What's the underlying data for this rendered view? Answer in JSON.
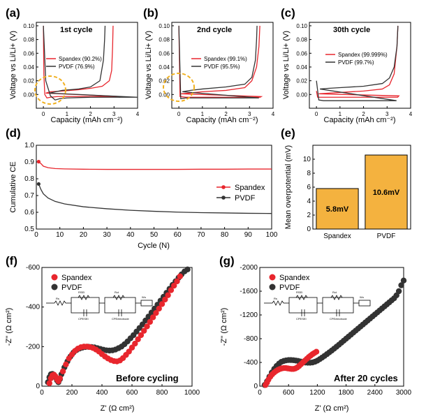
{
  "panels": {
    "a": {
      "label": "(a)",
      "title": "1st cycle",
      "ylabel": "Voltage vs Li/Li+ (V)",
      "xlabel": "Capacity (mAh cm⁻²)",
      "legend": [
        "Spandex (90.2%)",
        "PVDF (76.9%)"
      ]
    },
    "b": {
      "label": "(b)",
      "title": "2nd cycle",
      "ylabel": "Voltage vs Li/Li+ (V)",
      "xlabel": "Capacity (mAh cm⁻²)",
      "legend": [
        "Spandex (99.1%)",
        "PVDF (95.5%)"
      ]
    },
    "c": {
      "label": "(c)",
      "title": "30th cycle",
      "ylabel": "Voltage vs Li/Li+ (V)",
      "xlabel": "Capacity (mAh cm⁻²)",
      "legend": [
        "Spandex (99.999%)",
        "PVDF (99.7%)"
      ]
    },
    "d": {
      "label": "(d)",
      "ylabel": "Cumulative CE",
      "xlabel": "Cycle (N)",
      "legend": [
        "Spandex",
        "PVDF"
      ]
    },
    "e": {
      "label": "(e)",
      "ylabel": "Mean overpotential (mV)",
      "bar_labels": [
        "5.8mV",
        "10.6mV"
      ]
    },
    "f": {
      "label": "(f)",
      "ylabel": "-Z'' (Ω cm²)",
      "xlabel": "Z' (Ω cm²)",
      "legend": [
        "Spandex",
        "PVDF"
      ],
      "annotation": "Before cycling",
      "circuit": [
        "Rs",
        "RSEI",
        "CPESEI",
        "Rct",
        "CPEelectrode",
        "Wo"
      ]
    },
    "g": {
      "label": "(g)",
      "ylabel": "-Z'' (Ω cm²)",
      "xlabel": "Z' (Ω cm²)",
      "legend": [
        "Spandex",
        "PVDF"
      ],
      "annotation": "After 20 cycles",
      "circuit": [
        "Rs",
        "RSEI",
        "CPESEI",
        "Rct",
        "CPEelectrode",
        "Wo"
      ]
    }
  },
  "colors": {
    "spandex": "#e8262d",
    "pvdf": "#333333",
    "bar": "#f4b23f",
    "highlight": "#f0b020"
  },
  "chart_data": [
    {
      "id": "a",
      "type": "line",
      "title": "1st cycle",
      "xlabel": "Capacity (mAh cm-2)",
      "ylabel": "Voltage vs Li/Li+ (V)",
      "xlim": [
        -0.3,
        4
      ],
      "ylim": [
        -0.02,
        0.105
      ],
      "xticks": [
        0,
        1,
        2,
        3,
        4
      ],
      "yticks": [
        0.0,
        0.02,
        0.04,
        0.06,
        0.08,
        0.1
      ],
      "series": [
        {
          "name": "Spandex (90.2%)",
          "x": [
            0,
            0.02,
            0.06,
            0.15,
            0.3,
            0.6,
            1.0,
            2.0,
            3.0,
            3.25,
            3.28,
            0.1,
            0.3,
            0.8,
            1.5,
            2.0,
            2.5,
            2.8,
            2.9,
            2.94,
            2.96
          ],
          "y": [
            0.1,
            0.03,
            0.0,
            -0.005,
            -0.004,
            -0.003,
            -0.003,
            -0.003,
            -0.003,
            -0.004,
            -0.003,
            0.002,
            0.004,
            0.005,
            0.007,
            0.009,
            0.012,
            0.02,
            0.035,
            0.07,
            0.1
          ]
        },
        {
          "name": "PVDF (76.9%)",
          "x": [
            0,
            0.1,
            0.3,
            0.5,
            0.7,
            1.0,
            2.0,
            3.0,
            4.0,
            0.25,
            0.8,
            1.5,
            2.0,
            2.4,
            2.55,
            2.6,
            2.62
          ],
          "y": [
            0.1,
            0.02,
            -0.002,
            -0.008,
            -0.006,
            -0.005,
            -0.004,
            -0.004,
            -0.004,
            0.002,
            0.006,
            0.008,
            0.011,
            0.02,
            0.05,
            0.08,
            0.1
          ]
        }
      ]
    },
    {
      "id": "b",
      "type": "line",
      "title": "2nd cycle",
      "xlabel": "Capacity (mAh cm-2)",
      "ylabel": "Voltage vs Li/Li+ (V)",
      "xlim": [
        -0.3,
        4
      ],
      "ylim": [
        -0.02,
        0.105
      ],
      "xticks": [
        0,
        1,
        2,
        3,
        4
      ],
      "yticks": [
        0.0,
        0.02,
        0.04,
        0.06,
        0.08,
        0.1
      ],
      "series": [
        {
          "name": "Spandex (99.1%)",
          "x": [
            0,
            0.05,
            0.3,
            1.0,
            2.0,
            3.0,
            3.45,
            3.5,
            0.1,
            1.0,
            2.0,
            2.8,
            3.1,
            3.3,
            3.4,
            3.44
          ],
          "y": [
            0.1,
            -0.003,
            -0.004,
            -0.004,
            -0.004,
            -0.004,
            -0.004,
            -0.003,
            0.001,
            0.004,
            0.006,
            0.01,
            0.02,
            0.04,
            0.07,
            0.1
          ]
        },
        {
          "name": "PVDF (95.5%)",
          "x": [
            0,
            0.08,
            0.3,
            1.0,
            2.0,
            3.0,
            3.4,
            0.15,
            0.5,
            1.0,
            2.0,
            2.8,
            3.1,
            3.25,
            3.3,
            3.32
          ],
          "y": [
            0.1,
            -0.006,
            -0.005,
            -0.005,
            -0.005,
            -0.005,
            -0.005,
            0.004,
            0.006,
            0.008,
            0.011,
            0.015,
            0.025,
            0.05,
            0.08,
            0.1
          ]
        }
      ]
    },
    {
      "id": "c",
      "type": "line",
      "title": "30th cycle",
      "xlabel": "Capacity (mAh cm-2)",
      "ylabel": "Voltage vs Li/Li+ (V)",
      "xlim": [
        -0.3,
        4
      ],
      "ylim": [
        -0.02,
        0.105
      ],
      "xticks": [
        0,
        1,
        2,
        3,
        4
      ],
      "yticks": [
        0.0,
        0.02,
        0.04,
        0.06,
        0.08,
        0.1
      ],
      "series": [
        {
          "name": "Spandex (99.999%)",
          "x": [
            0,
            0.05,
            0.3,
            1.0,
            2.0,
            3.0,
            3.45,
            3.5,
            0.1,
            1.0,
            2.0,
            2.8,
            3.1,
            3.3,
            3.42,
            3.46
          ],
          "y": [
            0.005,
            -0.004,
            -0.004,
            -0.004,
            -0.004,
            -0.004,
            -0.004,
            -0.002,
            0.001,
            0.003,
            0.005,
            0.008,
            0.014,
            0.03,
            0.07,
            0.1
          ]
        },
        {
          "name": "PVDF (99.7%)",
          "x": [
            0,
            0.1,
            0.3,
            1.0,
            2.0,
            3.0,
            3.4,
            0.15,
            0.5,
            1.0,
            2.0,
            2.8,
            3.1,
            3.3,
            3.42,
            3.46
          ],
          "y": [
            0.02,
            -0.008,
            -0.009,
            -0.009,
            -0.009,
            -0.009,
            -0.009,
            0.008,
            0.009,
            0.01,
            0.012,
            0.016,
            0.024,
            0.04,
            0.07,
            0.1
          ]
        }
      ]
    },
    {
      "id": "d",
      "type": "line",
      "xlabel": "Cycle (N)",
      "ylabel": "Cumulative CE",
      "xlim": [
        0,
        100
      ],
      "ylim": [
        0.5,
        1.0
      ],
      "xticks": [
        0,
        10,
        20,
        30,
        40,
        50,
        60,
        70,
        80,
        90,
        100
      ],
      "yticks": [
        0.5,
        0.6,
        0.7,
        0.8,
        0.9,
        1.0
      ],
      "series": [
        {
          "name": "Spandex",
          "x": [
            1,
            2,
            3,
            5,
            8,
            12,
            20,
            30,
            40,
            50,
            60,
            70,
            80,
            90,
            100
          ],
          "y": [
            0.902,
            0.89,
            0.875,
            0.866,
            0.861,
            0.859,
            0.857,
            0.856,
            0.856,
            0.856,
            0.856,
            0.857,
            0.857,
            0.858,
            0.858
          ]
        },
        {
          "name": "PVDF",
          "x": [
            1,
            2,
            3,
            5,
            8,
            12,
            20,
            30,
            40,
            50,
            60,
            70,
            80,
            90,
            100
          ],
          "y": [
            0.769,
            0.735,
            0.71,
            0.685,
            0.665,
            0.65,
            0.633,
            0.621,
            0.612,
            0.606,
            0.601,
            0.598,
            0.596,
            0.594,
            0.593
          ]
        }
      ]
    },
    {
      "id": "e",
      "type": "bar",
      "ylabel": "Mean overpotential (mV)",
      "categories": [
        "Spandex",
        "PVDF"
      ],
      "values": [
        5.8,
        10.6
      ],
      "ylim": [
        0,
        12
      ],
      "yticks": [
        0,
        2,
        4,
        6,
        8,
        10
      ]
    },
    {
      "id": "f",
      "type": "scatter",
      "xlabel": "Z' (Ω cm2)",
      "ylabel": "-Z'' (Ω cm2)",
      "xlim": [
        0,
        1000
      ],
      "ylim": [
        0,
        -600
      ],
      "xticks": [
        0,
        200,
        400,
        600,
        800,
        1000
      ],
      "yticks": [
        0,
        -200,
        -400,
        -600
      ],
      "series": [
        {
          "name": "Spandex",
          "x": [
            50,
            60,
            70,
            80,
            90,
            100,
            110,
            120,
            140,
            160,
            180,
            200,
            220,
            240,
            260,
            280,
            300,
            320,
            340,
            360,
            380,
            400,
            420,
            440,
            460,
            480,
            500,
            520,
            540,
            560,
            580,
            600,
            620,
            640,
            660,
            680,
            700,
            720,
            740,
            760,
            780,
            800,
            820,
            840,
            860,
            880,
            900,
            920
          ],
          "y": [
            -15,
            -40,
            -55,
            -58,
            -50,
            -35,
            -25,
            -40,
            -75,
            -110,
            -140,
            -160,
            -178,
            -190,
            -197,
            -200,
            -200,
            -198,
            -193,
            -185,
            -175,
            -162,
            -150,
            -140,
            -132,
            -127,
            -125,
            -130,
            -142,
            -158,
            -175,
            -195,
            -215,
            -237,
            -258,
            -280,
            -302,
            -325,
            -348,
            -370,
            -392,
            -415,
            -438,
            -460,
            -485,
            -508,
            -530,
            -555
          ]
        },
        {
          "name": "PVDF",
          "x": [
            40,
            50,
            60,
            70,
            80,
            90,
            100,
            110,
            120,
            130,
            150,
            170,
            190,
            210,
            230,
            250,
            270,
            290,
            310,
            330,
            350,
            370,
            390,
            410,
            430,
            450,
            470,
            490,
            510,
            530,
            550,
            570,
            590,
            610,
            630,
            650,
            670,
            690,
            710,
            730,
            750,
            770,
            790,
            810,
            830,
            850,
            870,
            890,
            910,
            930,
            950,
            970
          ],
          "y": [
            -20,
            -45,
            -60,
            -62,
            -58,
            -45,
            -30,
            -20,
            -35,
            -60,
            -95,
            -125,
            -150,
            -170,
            -182,
            -190,
            -195,
            -198,
            -199,
            -198,
            -196,
            -192,
            -188,
            -184,
            -181,
            -180,
            -181,
            -185,
            -192,
            -200,
            -212,
            -226,
            -242,
            -258,
            -276,
            -294,
            -312,
            -332,
            -352,
            -372,
            -392,
            -412,
            -432,
            -452,
            -472,
            -492,
            -512,
            -530,
            -548,
            -565,
            -580,
            -590
          ]
        }
      ]
    },
    {
      "id": "g",
      "type": "scatter",
      "xlabel": "Z' (Ω cm2)",
      "ylabel": "-Z'' (Ω cm2)",
      "xlim": [
        0,
        3000
      ],
      "ylim": [
        0,
        -2000
      ],
      "xticks": [
        0,
        600,
        1200,
        1800,
        2400,
        3000
      ],
      "yticks": [
        0,
        -400,
        -800,
        -1200,
        -1600,
        -2000
      ],
      "series": [
        {
          "name": "Spandex",
          "x": [
            120,
            150,
            180,
            220,
            260,
            300,
            340,
            380,
            420,
            460,
            500,
            540,
            580,
            620,
            660,
            700,
            740,
            780,
            820,
            860,
            900,
            940,
            980,
            1020,
            1060,
            1100,
            1140,
            1180
          ],
          "y": [
            -20,
            -60,
            -110,
            -160,
            -200,
            -230,
            -255,
            -275,
            -290,
            -300,
            -305,
            -305,
            -300,
            -295,
            -290,
            -290,
            -298,
            -315,
            -340,
            -370,
            -400,
            -430,
            -460,
            -490,
            -515,
            -540,
            -560,
            -580
          ]
        },
        {
          "name": "PVDF",
          "x": [
            100,
            150,
            200,
            250,
            300,
            350,
            400,
            450,
            500,
            550,
            600,
            650,
            700,
            750,
            800,
            850,
            900,
            950,
            1000,
            1050,
            1100,
            1150,
            1200,
            1250,
            1300,
            1350,
            1400,
            1450,
            1500,
            1550,
            1600,
            1650,
            1700,
            1750,
            1800,
            1850,
            1900,
            1950,
            2000,
            2050,
            2100,
            2150,
            2200,
            2250,
            2300,
            2350,
            2400,
            2450,
            2500,
            2550,
            2600,
            2650,
            2700,
            2750,
            2800,
            2850,
            2900,
            2950,
            3000
          ],
          "y": [
            -20,
            -80,
            -160,
            -230,
            -290,
            -340,
            -380,
            -410,
            -425,
            -435,
            -440,
            -440,
            -438,
            -432,
            -425,
            -415,
            -405,
            -398,
            -395,
            -395,
            -400,
            -412,
            -430,
            -455,
            -482,
            -510,
            -540,
            -570,
            -600,
            -632,
            -665,
            -698,
            -732,
            -766,
            -800,
            -834,
            -868,
            -902,
            -936,
            -970,
            -1004,
            -1038,
            -1072,
            -1106,
            -1140,
            -1174,
            -1208,
            -1242,
            -1276,
            -1310,
            -1344,
            -1378,
            -1412,
            -1446,
            -1480,
            -1530,
            -1600,
            -1700,
            -1780
          ]
        }
      ]
    }
  ]
}
